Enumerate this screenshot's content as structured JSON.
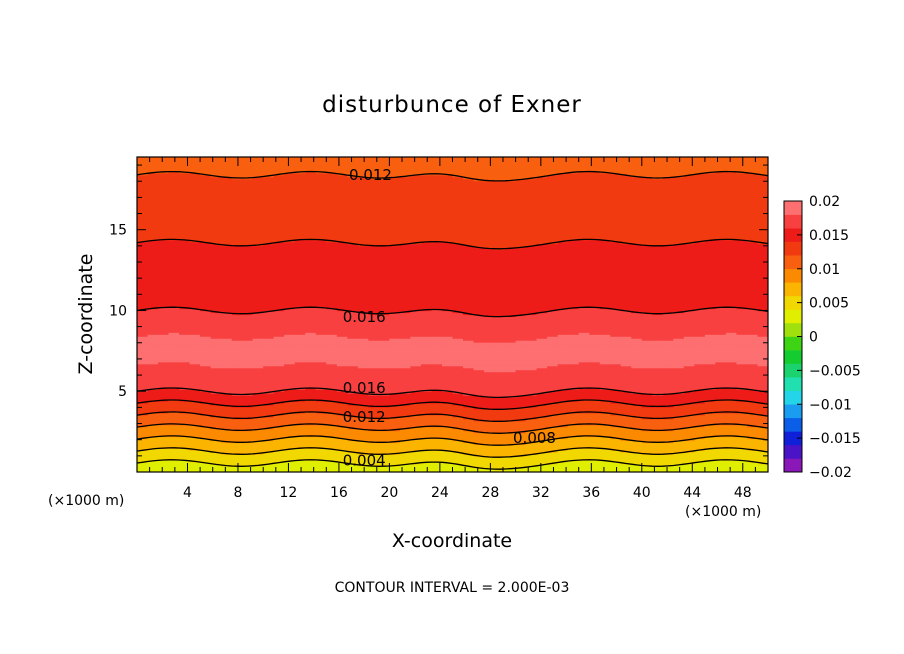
{
  "chart_data": {
    "type": "contour",
    "title": "disturbunce of Exner",
    "xlabel": "X-coordinate",
    "ylabel": "Z-coordinate",
    "x_unit": "(×1000 m)",
    "xlim": [
      0,
      50
    ],
    "ylim": [
      0,
      19.5
    ],
    "x_ticks": [
      "4",
      "8",
      "12",
      "16",
      "20",
      "24",
      "28",
      "32",
      "36",
      "40",
      "44",
      "48"
    ],
    "y_ticks": [
      "5",
      "10",
      "15"
    ],
    "contour_labels": [
      {
        "text": "0.012",
        "x": 18.5,
        "z": 18.4
      },
      {
        "text": "0.016",
        "x": 18.0,
        "z": 9.6
      },
      {
        "text": "0.016",
        "x": 18.0,
        "z": 5.2
      },
      {
        "text": "0.012",
        "x": 18.0,
        "z": 3.4
      },
      {
        "text": "0.008",
        "x": 31.5,
        "z": 2.1
      },
      {
        "text": "0.004",
        "x": 18.0,
        "z": 0.7
      }
    ],
    "colorbar": {
      "labels": [
        "0.02",
        "0.015",
        "0.01",
        "0.005",
        "0",
        "−0.005",
        "−0.01",
        "−0.015",
        "−0.02"
      ],
      "min": -0.02,
      "max": 0.02,
      "colors": [
        "#8a17b8",
        "#4a13c8",
        "#1020d8",
        "#0a5ee8",
        "#1a9cf0",
        "#24d4e8",
        "#20e0b0",
        "#1ad36e",
        "#14cc30",
        "#3ed414",
        "#a0e00c",
        "#e0ee00",
        "#f0d800",
        "#fbb400",
        "#fc8a00",
        "#f86010",
        "#f23a10",
        "#ee1c18",
        "#f84040",
        "#fd6f70"
      ]
    },
    "footer": "CONTOUR INTERVAL = 2.000E-03"
  }
}
